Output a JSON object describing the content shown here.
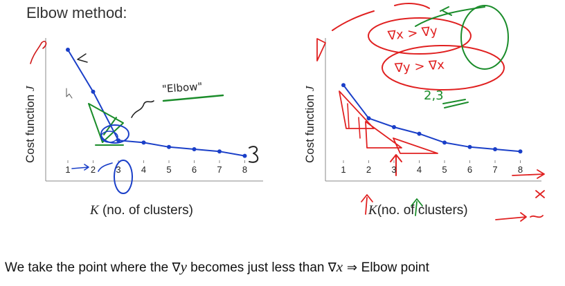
{
  "title": "Elbow method:",
  "left_chart": {
    "ylabel_prefix": "Cost function ",
    "ylabel_var": "J",
    "xlabel_var": "K",
    "xlabel_rest": " (no. of clusters)",
    "x_ticks": [
      "1",
      "2",
      "3",
      "4",
      "5",
      "6",
      "7",
      "8"
    ],
    "annotation_elbow": "\"Elbow\""
  },
  "right_chart": {
    "ylabel_prefix": "Cost function ",
    "ylabel_var": "J",
    "xlabel_rest": "(no. of clusters)",
    "x_ticks": [
      "1",
      "2",
      "3",
      "4",
      "5",
      "6",
      "7",
      "8"
    ],
    "annotation_grad1": "∇x > ∇y",
    "annotation_grad2": "∇y > ∇x",
    "annotation_nums": "2,3"
  },
  "caption": {
    "part1": "We take the point where the ",
    "sym_y": "∇",
    "var_y": "y",
    "part2": " becomes just less than ",
    "sym_x": "∇",
    "var_x": "x",
    "arrow": " ⇒ ",
    "part3": "Elbow point"
  },
  "colors": {
    "ink": "#1a3fc8",
    "red": "#e02020",
    "green": "#1a8c2a",
    "axis": "#888888"
  },
  "chart_data": [
    {
      "type": "line",
      "title": "Elbow method:",
      "xlabel": "K (no. of clusters)",
      "ylabel": "Cost function J",
      "x": [
        1,
        2,
        3,
        4,
        5,
        6,
        7,
        8
      ],
      "series": [
        {
          "values": [
            100,
            62,
            18,
            16,
            12,
            10,
            8,
            4
          ]
        }
      ]
    },
    {
      "type": "line",
      "xlabel": "K (no. of clusters)",
      "ylabel": "Cost function J",
      "x": [
        1,
        2,
        3,
        4,
        5,
        6,
        7,
        8
      ],
      "series": [
        {
          "values": [
            68,
            38,
            30,
            24,
            16,
            12,
            10,
            8
          ]
        }
      ]
    }
  ]
}
